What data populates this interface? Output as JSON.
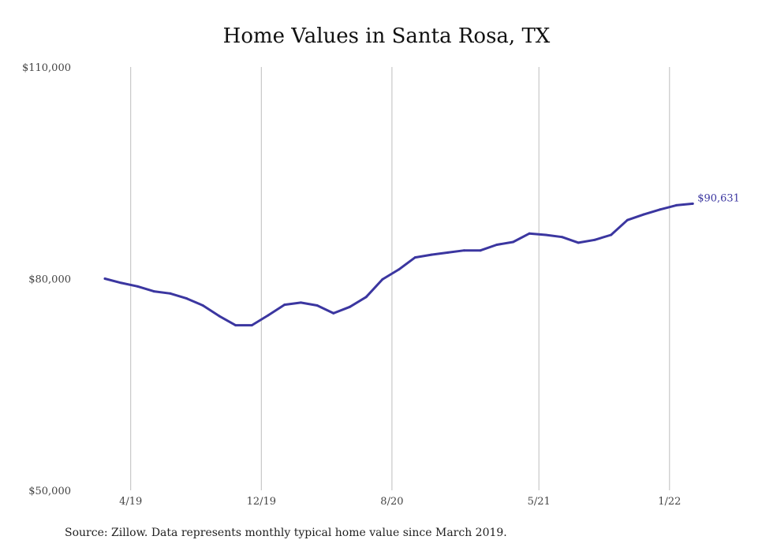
{
  "chart_data": {
    "type": "line",
    "title": "Home Values in Santa Rosa, TX",
    "xlabel": "",
    "ylabel": "",
    "ylim": [
      50000,
      110000
    ],
    "yticks": [
      "$110,000",
      "$80,000",
      "$50,000"
    ],
    "ytick_values": [
      110000,
      80000,
      50000
    ],
    "xtick_labels": [
      "4/19",
      "12/19",
      "8/20",
      "5/21",
      "1/22"
    ],
    "x": [
      "3/19",
      "4/19",
      "5/19",
      "6/19",
      "7/19",
      "8/19",
      "9/19",
      "10/19",
      "11/19",
      "12/19",
      "1/20",
      "2/20",
      "3/20",
      "4/20",
      "5/20",
      "6/20",
      "7/20",
      "8/20",
      "9/20",
      "10/20",
      "11/20",
      "12/20",
      "1/21",
      "2/21",
      "3/21",
      "4/21",
      "5/21",
      "6/21",
      "7/21",
      "8/21",
      "9/21",
      "10/21",
      "11/21",
      "12/21",
      "1/22",
      "2/22",
      "3/22"
    ],
    "series": [
      {
        "values": [
          80000,
          79400,
          78900,
          78200,
          77900,
          77200,
          76200,
          74700,
          73400,
          73400,
          74800,
          76300,
          76600,
          76200,
          75100,
          76000,
          77400,
          79900,
          81300,
          83000,
          83400,
          83700,
          84000,
          84000,
          84800,
          85200,
          86400,
          86200,
          85900,
          85100,
          85500,
          86200,
          88300,
          89100,
          89800,
          90400,
          90631
        ],
        "color": "#3b36a0"
      }
    ],
    "end_label": "$90,631",
    "grid": "vertical"
  },
  "source_note": "Source: Zillow. Data represents monthly typical home value since March 2019."
}
